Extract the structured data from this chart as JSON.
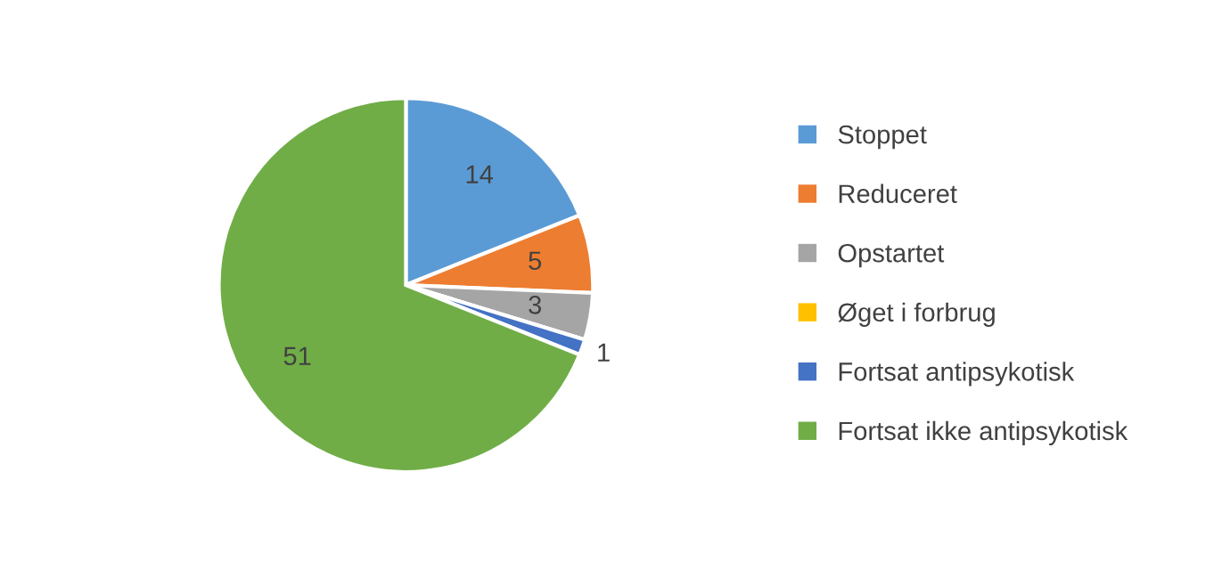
{
  "chart_data": {
    "type": "pie",
    "categories": [
      "Stoppet",
      "Reduceret",
      "Opstartet",
      "Øget i forbrug",
      "Fortsat antipsykotisk",
      "Fortsat ikke antipsykotisk"
    ],
    "values": [
      14,
      5,
      3,
      0,
      1,
      51
    ],
    "colors": [
      "#5b9bd5",
      "#ed7d31",
      "#a5a5a5",
      "#ffc000",
      "#4472c4",
      "#70ad47"
    ],
    "value_labels": [
      "14",
      "5",
      "3",
      null,
      "1",
      "51"
    ],
    "legend": "right"
  }
}
